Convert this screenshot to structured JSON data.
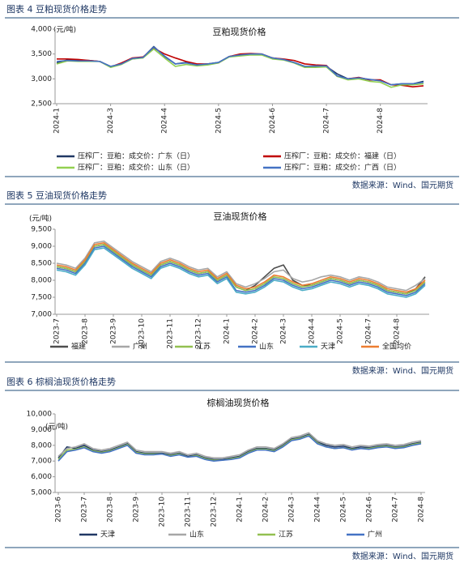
{
  "figures": [
    {
      "caption": "图表 4 豆粕现货价格走势",
      "source": "数据来源：Wind、国元期货"
    },
    {
      "caption": "图表 5 豆油现货价格走势",
      "source": "数据来源：Wind、国元期货"
    },
    {
      "caption": "图表 6 棕榈油现货价格走势",
      "source": "数据来源：Wind、国元期货"
    }
  ],
  "chart_data": [
    {
      "type": "line",
      "title": "豆粕现货价格",
      "y_unit": "(元/吨)",
      "grid": false,
      "ylim": [
        2500,
        4000
      ],
      "yticks": [
        {
          "value": 2500,
          "label": "2,500"
        },
        {
          "value": 3000,
          "label": "3,000"
        },
        {
          "value": 3500,
          "label": "3,500"
        },
        {
          "value": 4000,
          "label": "4,000"
        }
      ],
      "categories": [
        "2024-1",
        null,
        null,
        null,
        null,
        "2024-3",
        null,
        null,
        null,
        null,
        "2024-4",
        null,
        null,
        null,
        null,
        "2024-5",
        null,
        null,
        null,
        null,
        "2024-6",
        null,
        null,
        null,
        null,
        "2024-7",
        null,
        null,
        null,
        null,
        "2024-8",
        null,
        null,
        null,
        null
      ],
      "series": [
        {
          "name": "压榨厂：豆粕：成交价：广东（日）",
          "color": "#203864",
          "values": [
            3320,
            3380,
            3370,
            3370,
            3350,
            3250,
            3300,
            3400,
            3430,
            3650,
            3450,
            3300,
            3330,
            3280,
            3300,
            3330,
            3450,
            3480,
            3500,
            3490,
            3420,
            3390,
            3330,
            3250,
            3250,
            3250,
            3100,
            3000,
            3020,
            2980,
            2970,
            2880,
            2900,
            2900,
            2950
          ]
        },
        {
          "name": "压榨厂：豆粕：成交价：福建（日）",
          "color": "#c00000",
          "values": [
            3400,
            3400,
            3390,
            3370,
            3350,
            3240,
            3320,
            3420,
            3440,
            3620,
            3500,
            3420,
            3350,
            3300,
            3300,
            3320,
            3450,
            3500,
            3510,
            3500,
            3420,
            3400,
            3370,
            3300,
            3280,
            3270,
            3050,
            3000,
            3030,
            2980,
            2980,
            2880,
            2870,
            2840,
            2860
          ]
        },
        {
          "name": "压榨厂：豆粕：成交价：山东（日）",
          "color": "#92d050",
          "values": [
            3300,
            3360,
            3350,
            3350,
            3350,
            3230,
            3290,
            3400,
            3420,
            3600,
            3420,
            3250,
            3290,
            3260,
            3280,
            3320,
            3440,
            3460,
            3480,
            3480,
            3400,
            3380,
            3320,
            3230,
            3230,
            3240,
            3050,
            2980,
            3000,
            2950,
            2930,
            2830,
            2880,
            2880,
            2900
          ]
        },
        {
          "name": "压榨厂：豆粕：成交价：广西（日）",
          "color": "#4472c4",
          "values": [
            3350,
            3370,
            3360,
            3360,
            3350,
            3250,
            3300,
            3410,
            3430,
            3640,
            3460,
            3300,
            3320,
            3280,
            3300,
            3330,
            3450,
            3480,
            3500,
            3500,
            3420,
            3390,
            3330,
            3250,
            3260,
            3260,
            3060,
            3000,
            3020,
            2990,
            2960,
            2880,
            2900,
            2900,
            2930
          ]
        }
      ]
    },
    {
      "type": "line",
      "title": "豆油现货价格",
      "y_unit": "(元/吨)",
      "grid": false,
      "ylim": [
        7000,
        9500
      ],
      "yticks": [
        {
          "value": 7000,
          "label": "7,000"
        },
        {
          "value": 7500,
          "label": "7,500"
        },
        {
          "value": 8000,
          "label": "8,000"
        },
        {
          "value": 8500,
          "label": "8,500"
        },
        {
          "value": 9000,
          "label": "9,000"
        },
        {
          "value": 9500,
          "label": "9,500"
        }
      ],
      "categories": [
        "2023-7",
        null,
        null,
        "2023-8",
        null,
        null,
        "2023-9",
        null,
        null,
        "2023-10",
        null,
        null,
        "2023-11",
        null,
        null,
        "2023-12",
        null,
        null,
        "2024-1",
        null,
        null,
        "2024-2",
        null,
        null,
        "2024-3",
        null,
        null,
        "2024-4",
        null,
        null,
        "2024-5",
        null,
        null,
        "2024-7",
        null,
        null,
        "2024-8",
        null,
        null,
        null
      ],
      "series": [
        {
          "name": "福建",
          "color": "#4d4d4d",
          "values": [
            8400,
            8350,
            8250,
            8550,
            9000,
            9050,
            8850,
            8650,
            8450,
            8300,
            8150,
            8450,
            8550,
            8450,
            8300,
            8200,
            8250,
            8000,
            8150,
            7800,
            7700,
            7850,
            8100,
            8350,
            8450,
            8000,
            7850,
            7850,
            7950,
            8050,
            8000,
            7900,
            8000,
            7950,
            7850,
            7700,
            7650,
            7600,
            7750,
            8100
          ]
        },
        {
          "name": "广州",
          "color": "#a6a6a6",
          "values": [
            8500,
            8450,
            8350,
            8650,
            9100,
            9150,
            8950,
            8750,
            8550,
            8400,
            8250,
            8550,
            8650,
            8550,
            8400,
            8300,
            8350,
            8100,
            8250,
            7900,
            7800,
            7900,
            8050,
            8250,
            8300,
            8050,
            7950,
            8000,
            8100,
            8150,
            8100,
            8000,
            8100,
            8050,
            7950,
            7800,
            7750,
            7700,
            7850,
            8050
          ]
        },
        {
          "name": "江苏",
          "color": "#92c050",
          "values": [
            8400,
            8350,
            8250,
            8550,
            9000,
            9050,
            8850,
            8650,
            8450,
            8300,
            8150,
            8450,
            8550,
            8450,
            8300,
            8200,
            8250,
            8000,
            8150,
            7800,
            7700,
            7750,
            7900,
            8100,
            8050,
            7900,
            7800,
            7850,
            7950,
            8050,
            8000,
            7900,
            8000,
            7950,
            7850,
            7700,
            7650,
            7600,
            7700,
            7950
          ]
        },
        {
          "name": "山东",
          "color": "#4472c4",
          "values": [
            8350,
            8300,
            8200,
            8500,
            8950,
            9000,
            8800,
            8600,
            8400,
            8250,
            8100,
            8400,
            8500,
            8400,
            8250,
            8150,
            8200,
            7950,
            8100,
            7700,
            7650,
            7700,
            7850,
            8050,
            8000,
            7850,
            7750,
            7800,
            7900,
            8000,
            7950,
            7850,
            7950,
            7900,
            7800,
            7650,
            7600,
            7550,
            7650,
            7900
          ]
        },
        {
          "name": "天津",
          "color": "#4bacc6",
          "values": [
            8300,
            8250,
            8150,
            8450,
            8900,
            8950,
            8750,
            8550,
            8350,
            8200,
            8050,
            8350,
            8450,
            8350,
            8200,
            8100,
            8150,
            7900,
            8050,
            7650,
            7600,
            7650,
            7800,
            8000,
            7950,
            7800,
            7700,
            7750,
            7850,
            7950,
            7900,
            7800,
            7900,
            7850,
            7750,
            7600,
            7550,
            7500,
            7600,
            7850
          ]
        },
        {
          "name": "全国均价",
          "color": "#ed7d31",
          "values": [
            8450,
            8400,
            8300,
            8600,
            9050,
            9100,
            8900,
            8700,
            8500,
            8350,
            8200,
            8500,
            8600,
            8500,
            8350,
            8250,
            8300,
            8050,
            8200,
            7850,
            7750,
            7800,
            7950,
            8150,
            8100,
            7950,
            7850,
            7900,
            8000,
            8100,
            8050,
            7950,
            8050,
            8000,
            7900,
            7750,
            7700,
            7650,
            7750,
            8000
          ]
        }
      ]
    },
    {
      "type": "line",
      "title": "棕榈油现货价格",
      "y_unit": "(元/吨)",
      "grid": false,
      "ylim": [
        5000,
        10000
      ],
      "yticks": [
        {
          "value": 5000,
          "label": "5,000"
        },
        {
          "value": 6000,
          "label": "6,000"
        },
        {
          "value": 7000,
          "label": "7,000"
        },
        {
          "value": 8000,
          "label": "8,000"
        },
        {
          "value": 9000,
          "label": "9,000"
        },
        {
          "value": 10000,
          "label": "10,000"
        }
      ],
      "categories": [
        "2023-6",
        null,
        null,
        "2023-7",
        null,
        null,
        "2023-8",
        null,
        null,
        "2023-9",
        null,
        null,
        "2023-10",
        null,
        null,
        "2023-11",
        null,
        null,
        "2023-12",
        null,
        null,
        "2024-1",
        null,
        null,
        "2024-2",
        null,
        null,
        "2024-3",
        null,
        null,
        "2024-4",
        null,
        null,
        "2024-5",
        null,
        null,
        "2024-6",
        null,
        null,
        "2024-7",
        null,
        null,
        "2024-8"
      ],
      "series": [
        {
          "name": "天津",
          "color": "#203864",
          "values": [
            7200,
            7900,
            7800,
            8000,
            7700,
            7600,
            7700,
            7900,
            8100,
            7600,
            7500,
            7500,
            7500,
            7400,
            7500,
            7300,
            7400,
            7200,
            7100,
            7100,
            7200,
            7300,
            7600,
            7800,
            7800,
            7700,
            8000,
            8400,
            8500,
            8700,
            8200,
            8000,
            7900,
            7950,
            7800,
            7900,
            7850,
            7950,
            8000,
            7900,
            7950,
            8100,
            8200
          ]
        },
        {
          "name": "山东",
          "color": "#a6a6a6",
          "values": [
            7300,
            7800,
            7900,
            8100,
            7800,
            7700,
            7800,
            8000,
            8200,
            7700,
            7600,
            7600,
            7600,
            7500,
            7600,
            7400,
            7500,
            7300,
            7200,
            7200,
            7300,
            7400,
            7700,
            7900,
            7900,
            7800,
            8100,
            8500,
            8600,
            8800,
            8300,
            8100,
            8000,
            8050,
            7900,
            8000,
            7950,
            8050,
            8100,
            8000,
            8050,
            8200,
            8300
          ]
        },
        {
          "name": "江苏",
          "color": "#92c050",
          "values": [
            7100,
            7700,
            7750,
            7900,
            7650,
            7550,
            7650,
            7850,
            8050,
            7550,
            7450,
            7450,
            7450,
            7350,
            7450,
            7250,
            7350,
            7150,
            7050,
            7050,
            7150,
            7250,
            7550,
            7750,
            7750,
            7650,
            7950,
            8350,
            8450,
            8650,
            8150,
            7900,
            7800,
            7850,
            7750,
            7800,
            7800,
            7900,
            7950,
            7850,
            7900,
            8050,
            8150
          ]
        },
        {
          "name": "广州",
          "color": "#4472c4",
          "values": [
            7000,
            7600,
            7700,
            7850,
            7600,
            7500,
            7600,
            7800,
            8000,
            7500,
            7400,
            7400,
            7450,
            7300,
            7400,
            7250,
            7300,
            7100,
            7000,
            7050,
            7100,
            7200,
            7500,
            7700,
            7700,
            7600,
            7900,
            8300,
            8400,
            8600,
            8100,
            7900,
            7800,
            7850,
            7700,
            7800,
            7750,
            7850,
            7900,
            7800,
            7850,
            8000,
            8100
          ]
        }
      ]
    }
  ]
}
